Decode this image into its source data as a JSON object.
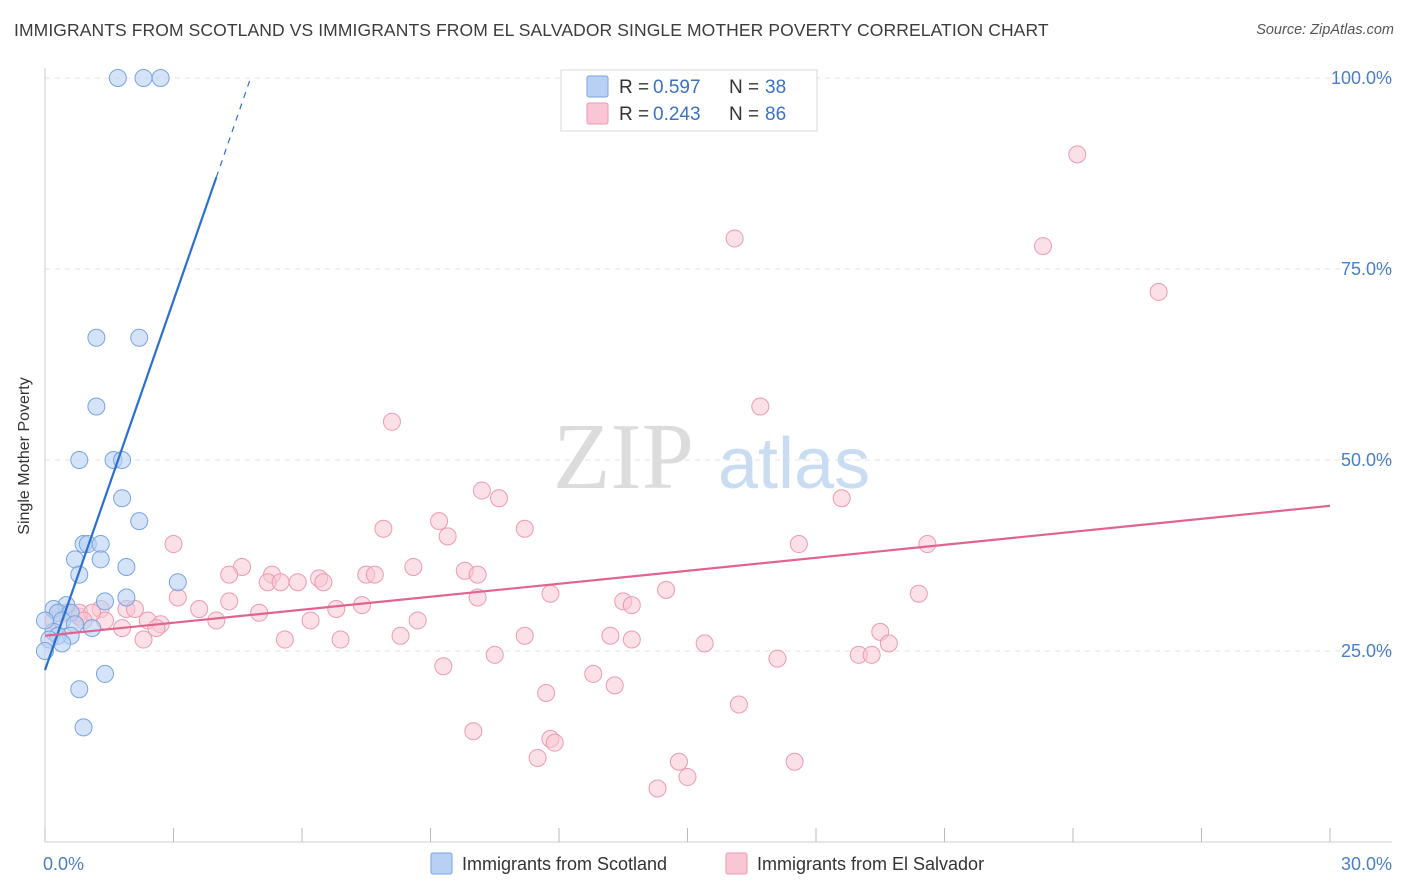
{
  "header": {
    "title": "IMMIGRANTS FROM SCOTLAND VS IMMIGRANTS FROM EL SALVADOR SINGLE MOTHER POVERTY CORRELATION CHART",
    "source": "Source: ZipAtlas.com"
  },
  "watermark": {
    "zip": "ZIP",
    "atlas": "atlas"
  },
  "stats": {
    "r_label": "R =",
    "n_label": "N =",
    "scotland": {
      "r": "0.597",
      "n": "38"
    },
    "elsalvador": {
      "r": "0.243",
      "n": "86"
    }
  },
  "colors": {
    "scotland_fill": "#b8d0f4",
    "scotland_stroke": "#7aa3e0",
    "scotland_line": "#2b6fd1",
    "elsalvador_fill": "#f8c6d4",
    "elsalvador_stroke": "#ec9ab2",
    "elsalvador_line": "#e0648f",
    "tick_text": "#4a7fc8",
    "grid": "#e0e0e0"
  },
  "chart_data": {
    "type": "scatter",
    "title": "IMMIGRANTS FROM SCOTLAND VS IMMIGRANTS FROM EL SALVADOR SINGLE MOTHER POVERTY CORRELATION CHART",
    "xlabel": "",
    "ylabel": "Single Mother Poverty",
    "xlim": [
      0,
      30
    ],
    "ylim": [
      0,
      102
    ],
    "x_ticks": [
      "0.0%",
      "30.0%"
    ],
    "y_ticks": [
      {
        "value": 25,
        "label": "25.0%"
      },
      {
        "value": 50,
        "label": "50.0%"
      },
      {
        "value": 75,
        "label": "75.0%"
      },
      {
        "value": 100,
        "label": "100.0%"
      }
    ],
    "grid": true,
    "legend_position": "bottom-center",
    "series": [
      {
        "name": "Immigrants from Scotland",
        "color": "#b8d0f4",
        "points": [
          [
            1.7,
            100
          ],
          [
            2.3,
            100
          ],
          [
            2.7,
            100
          ],
          [
            2.2,
            66
          ],
          [
            1.2,
            66
          ],
          [
            1.2,
            57
          ],
          [
            0.8,
            50
          ],
          [
            1.6,
            50
          ],
          [
            1.8,
            50
          ],
          [
            1.8,
            45
          ],
          [
            2.2,
            42
          ],
          [
            0.9,
            39
          ],
          [
            1.0,
            39
          ],
          [
            1.3,
            39
          ],
          [
            0.7,
            37
          ],
          [
            1.3,
            37
          ],
          [
            0.8,
            35
          ],
          [
            1.9,
            36
          ],
          [
            3.1,
            34
          ],
          [
            1.9,
            32
          ],
          [
            1.4,
            31.5
          ],
          [
            0.5,
            31
          ],
          [
            0.2,
            30.5
          ],
          [
            0.3,
            30
          ],
          [
            0.6,
            30
          ],
          [
            0.4,
            29
          ],
          [
            0.7,
            28.5
          ],
          [
            1.1,
            28
          ],
          [
            0.2,
            27.5
          ],
          [
            0.6,
            27
          ],
          [
            0.3,
            27
          ],
          [
            0.1,
            26.5
          ],
          [
            0.4,
            26
          ],
          [
            0.0,
            25
          ],
          [
            1.4,
            22
          ],
          [
            0.8,
            20
          ],
          [
            0.9,
            15
          ],
          [
            0.0,
            29
          ]
        ],
        "trend": {
          "x0": 0.0,
          "y0": 22.5,
          "x1": 4.0,
          "y1": 87,
          "dash_x1": 4.8,
          "dash_y1": 100
        }
      },
      {
        "name": "Immigrants from El Salvador",
        "color": "#f8c6d4",
        "points": [
          [
            24.1,
            90
          ],
          [
            16.1,
            79
          ],
          [
            23.3,
            78
          ],
          [
            26.0,
            72
          ],
          [
            16.7,
            57
          ],
          [
            8.1,
            55
          ],
          [
            10.2,
            46
          ],
          [
            10.6,
            45
          ],
          [
            18.6,
            45
          ],
          [
            9.2,
            42
          ],
          [
            11.2,
            41
          ],
          [
            7.9,
            41
          ],
          [
            9.4,
            40
          ],
          [
            17.6,
            39
          ],
          [
            3.0,
            39
          ],
          [
            20.6,
            39
          ],
          [
            8.6,
            36
          ],
          [
            4.6,
            36
          ],
          [
            9.8,
            35.5
          ],
          [
            5.3,
            35
          ],
          [
            4.3,
            35
          ],
          [
            7.5,
            35
          ],
          [
            7.7,
            35
          ],
          [
            10.1,
            35
          ],
          [
            6.4,
            34.5
          ],
          [
            5.2,
            34
          ],
          [
            5.5,
            34
          ],
          [
            6.5,
            34
          ],
          [
            5.9,
            34
          ],
          [
            14.5,
            33
          ],
          [
            11.8,
            32.5
          ],
          [
            10.1,
            32
          ],
          [
            20.4,
            32.5
          ],
          [
            3.1,
            32
          ],
          [
            4.3,
            31.5
          ],
          [
            7.4,
            31
          ],
          [
            13.5,
            31.5
          ],
          [
            13.7,
            31
          ],
          [
            3.6,
            30.5
          ],
          [
            6.8,
            30.5
          ],
          [
            1.3,
            30.5
          ],
          [
            1.9,
            30.5
          ],
          [
            2.1,
            30.5
          ],
          [
            0.3,
            30
          ],
          [
            5.0,
            30
          ],
          [
            0.8,
            29.5
          ],
          [
            4.0,
            29
          ],
          [
            8.7,
            29
          ],
          [
            1.4,
            29
          ],
          [
            0.2,
            29
          ],
          [
            2.4,
            29
          ],
          [
            6.2,
            29
          ],
          [
            2.7,
            28.5
          ],
          [
            2.6,
            28
          ],
          [
            1.8,
            28
          ],
          [
            11.2,
            27
          ],
          [
            8.3,
            27
          ],
          [
            13.2,
            27
          ],
          [
            6.9,
            26.5
          ],
          [
            5.6,
            26.5
          ],
          [
            2.3,
            26.5
          ],
          [
            13.7,
            26.5
          ],
          [
            15.4,
            26
          ],
          [
            19.5,
            27.5
          ],
          [
            19.7,
            26
          ],
          [
            19.0,
            24.5
          ],
          [
            19.3,
            24.5
          ],
          [
            17.1,
            24
          ],
          [
            10.5,
            24.5
          ],
          [
            9.3,
            23
          ],
          [
            12.8,
            22
          ],
          [
            13.3,
            20.5
          ],
          [
            11.7,
            19.5
          ],
          [
            16.2,
            18
          ],
          [
            10.0,
            14.5
          ],
          [
            11.8,
            13.5
          ],
          [
            11.9,
            13
          ],
          [
            11.5,
            11
          ],
          [
            14.8,
            10.5
          ],
          [
            17.5,
            10.5
          ],
          [
            15.0,
            8.5
          ],
          [
            14.3,
            7
          ],
          [
            0.5,
            30
          ],
          [
            0.8,
            30
          ],
          [
            1.1,
            30
          ],
          [
            0.9,
            29
          ]
        ],
        "trend": {
          "x0": 0.0,
          "y0": 27,
          "x1": 30.0,
          "y1": 44
        }
      }
    ]
  },
  "legend": {
    "items": [
      {
        "label": "Immigrants from Scotland"
      },
      {
        "label": "Immigrants from El Salvador"
      }
    ]
  }
}
